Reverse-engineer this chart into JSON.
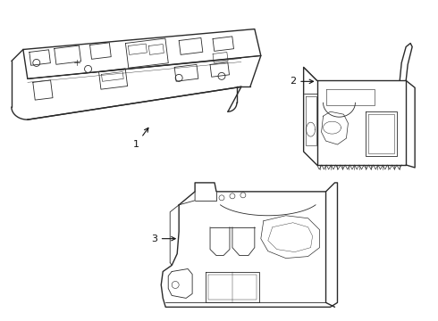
{
  "bg_color": "#ffffff",
  "line_color": "#2a2a2a",
  "lw_main": 1.0,
  "lw_detail": 0.6,
  "lw_thin": 0.4
}
